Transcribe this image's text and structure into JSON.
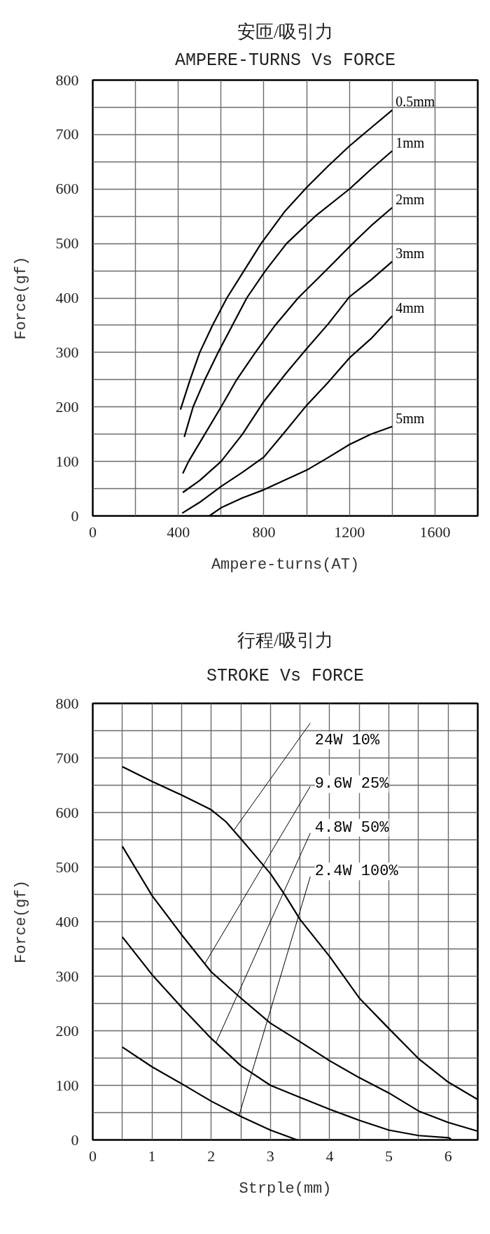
{
  "chart_data": [
    {
      "type": "line",
      "title": "安匝/吸引力",
      "subtitle": "AMPERE-TURNS Vs FORCE",
      "xlabel": "Ampere-turns(AT)",
      "ylabel": "Force(gf)",
      "xlim": [
        0,
        1800
      ],
      "ylim": [
        0,
        800
      ],
      "xticks": [
        0,
        {
          "value": 200,
          "label": null
        },
        400,
        {
          "value": 600,
          "label": null
        },
        800,
        {
          "value": 1000,
          "label": null
        },
        1200,
        {
          "value": 1400,
          "label": null
        },
        1600
      ],
      "yticks": [
        0,
        {
          "value": 50,
          "label": null
        },
        100,
        {
          "value": 150,
          "label": null
        },
        200,
        {
          "value": 250,
          "label": null
        },
        300,
        {
          "value": 350,
          "label": null
        },
        400,
        {
          "value": 450,
          "label": null
        },
        500,
        {
          "value": 550,
          "label": null
        },
        600,
        {
          "value": 650,
          "label": null
        },
        700,
        {
          "value": 750,
          "label": null
        },
        800
      ],
      "grid": true,
      "series": [
        {
          "name": "0.5mm",
          "color": "#000000",
          "x": [
            410,
            455,
            500,
            560,
            627,
            707,
            787,
            900,
            1000,
            1100,
            1200,
            1300,
            1400
          ],
          "values": [
            195,
            250,
            300,
            350,
            400,
            450,
            500,
            560,
            603,
            642,
            679,
            712,
            745
          ]
        },
        {
          "name": "1mm",
          "color": "#000000",
          "x": [
            428,
            469,
            524,
            586,
            653,
            720,
            807,
            906,
            1040,
            1200,
            1300,
            1400
          ],
          "values": [
            145,
            200,
            250,
            300,
            350,
            400,
            450,
            500,
            550,
            600,
            636,
            670
          ]
        },
        {
          "name": "2mm",
          "color": "#000000",
          "x": [
            421,
            448,
            524,
            600,
            673,
            760,
            853,
            960,
            1089,
            1215,
            1300,
            1400
          ],
          "values": [
            78,
            100,
            150,
            200,
            250,
            300,
            350,
            400,
            450,
            500,
            532,
            566
          ]
        },
        {
          "name": "3mm",
          "color": "#000000",
          "x": [
            421,
            500,
            600,
            700,
            800,
            900,
            1000,
            1100,
            1200,
            1300,
            1400
          ],
          "values": [
            43,
            65,
            100,
            150,
            210,
            260,
            307,
            352,
            402,
            433,
            467
          ]
        },
        {
          "name": "4mm",
          "color": "#000000",
          "x": [
            418,
            500,
            600,
            700,
            800,
            900,
            1000,
            1100,
            1200,
            1300,
            1400
          ],
          "values": [
            5,
            25,
            54,
            80,
            108,
            155,
            203,
            245,
            290,
            325,
            367
          ]
        },
        {
          "name": "5mm",
          "color": "#000000",
          "x": [
            545,
            600,
            700,
            800,
            900,
            1000,
            1100,
            1200,
            1300,
            1400
          ],
          "values": [
            0,
            15,
            33,
            48,
            66,
            84,
            107,
            131,
            150,
            164
          ]
        }
      ]
    },
    {
      "type": "line",
      "title": "行程/吸引力",
      "subtitle": "STROKE Vs FORCE",
      "xlabel": "Strple(mm)",
      "ylabel": "Force(gf)",
      "xlim": [
        0,
        6.5
      ],
      "ylim": [
        0,
        800
      ],
      "xticks": [
        0,
        {
          "value": 0.5,
          "label": null
        },
        1,
        {
          "value": 1.5,
          "label": null
        },
        2,
        {
          "value": 2.5,
          "label": null
        },
        3,
        {
          "value": 3.5,
          "label": null
        },
        4,
        {
          "value": 4.5,
          "label": null
        },
        5,
        {
          "value": 5.5,
          "label": null
        },
        6
      ],
      "yticks": [
        0,
        {
          "value": 50,
          "label": null
        },
        100,
        {
          "value": 150,
          "label": null
        },
        200,
        {
          "value": 250,
          "label": null
        },
        300,
        {
          "value": 350,
          "label": null
        },
        400,
        {
          "value": 450,
          "label": null
        },
        500,
        {
          "value": 550,
          "label": null
        },
        600,
        {
          "value": 650,
          "label": null
        },
        700,
        {
          "value": 750,
          "label": null
        },
        800
      ],
      "grid": true,
      "series": [
        {
          "name": "24W 10%",
          "color": "#000000",
          "x": [
            0.5,
            1,
            1.5,
            2,
            2.25,
            2.5,
            2.75,
            3,
            3.25,
            3.5,
            4,
            4.5,
            5,
            5.5,
            6,
            6.5
          ],
          "values": [
            684,
            657,
            632,
            605,
            583,
            552,
            520,
            488,
            448,
            404,
            336,
            260,
            204,
            149,
            106,
            74
          ]
        },
        {
          "name": "9.6W 25%",
          "color": "#000000",
          "x": [
            0.5,
            1,
            1.5,
            2,
            2.5,
            3,
            3.5,
            4,
            4.5,
            5,
            5.5,
            6,
            6.5
          ],
          "values": [
            538,
            448,
            376,
            308,
            260,
            214,
            180,
            145,
            114,
            86,
            53,
            32,
            16
          ]
        },
        {
          "name": "4.8W 50%",
          "color": "#000000",
          "x": [
            0.5,
            1,
            1.5,
            2,
            2.5,
            3,
            3.5,
            4,
            4.5,
            5,
            5.5,
            6,
            6.05
          ],
          "values": [
            372,
            303,
            243,
            186,
            136,
            100,
            78,
            56,
            36,
            18,
            8,
            4,
            2
          ]
        },
        {
          "name": "2.4W 100%",
          "color": "#000000",
          "x": [
            0.5,
            1,
            1.5,
            2,
            2.5,
            3,
            3.45
          ],
          "values": [
            170,
            134,
            103,
            71,
            43,
            18,
            0
          ]
        }
      ]
    }
  ]
}
